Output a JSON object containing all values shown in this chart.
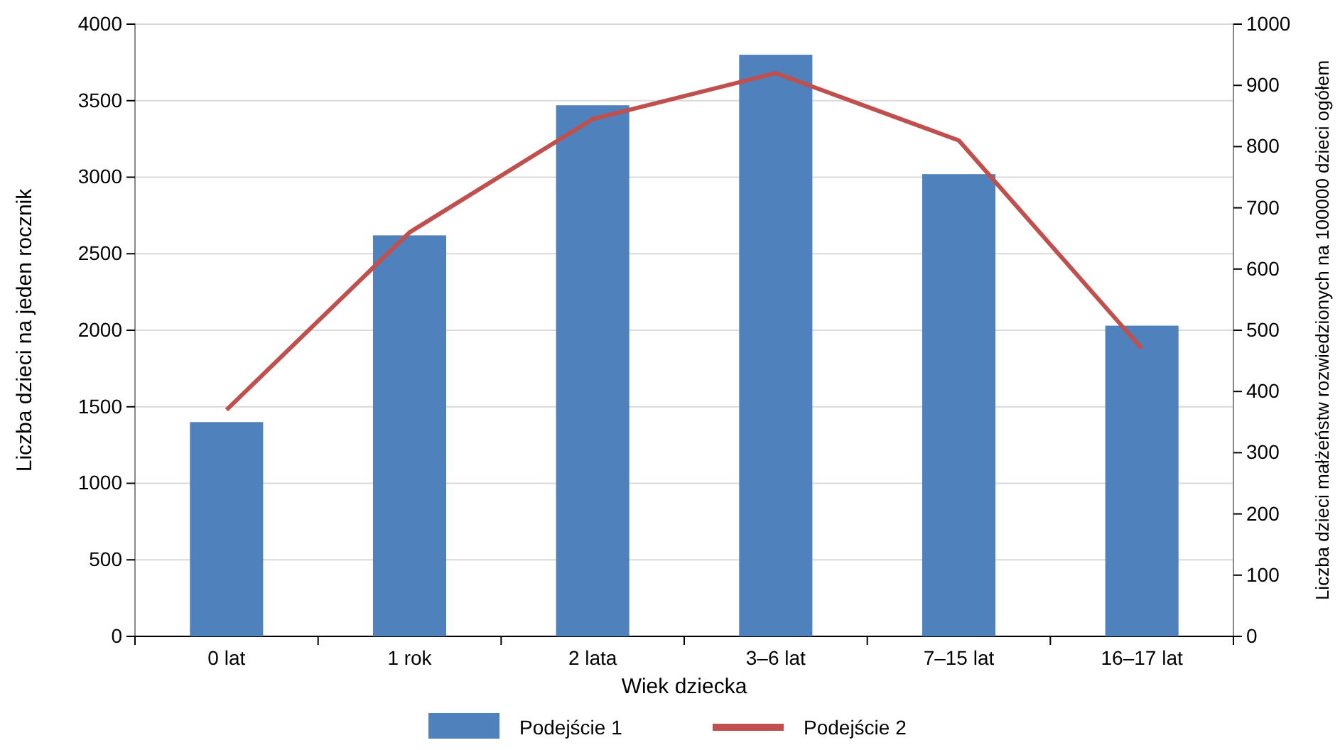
{
  "chart_data": {
    "type": "bar",
    "xlabel": "Wiek dziecka",
    "ylabel": "Liczba dzieci na jeden rocznik",
    "y2label": "Liczba dzieci małżeństw rozwiedzionych na 100000 dzieci ogółem",
    "categories": [
      "0 lat",
      "1 rok",
      "2 lata",
      "3–6 lat",
      "7–15 lat",
      "16–17 lat"
    ],
    "series": [
      {
        "name": "Podejście 1",
        "color": "#4f81bd",
        "values": [
          1400,
          2620,
          3470,
          3800,
          3020,
          2030
        ]
      },
      {
        "name": "Podejście 2",
        "type": "line",
        "axis": "y2",
        "color": "#c0504d",
        "values": [
          370,
          660,
          845,
          920,
          810,
          470
        ]
      }
    ],
    "ylim": [
      0,
      4000
    ],
    "yticks": [
      0,
      500,
      1000,
      1500,
      2000,
      2500,
      3000,
      3500,
      4000
    ],
    "y2lim": [
      0,
      1000
    ],
    "y2ticks": [
      0,
      100,
      200,
      300,
      400,
      500,
      600,
      700,
      800,
      900,
      1000
    ],
    "grid": "y",
    "legend": "bottom",
    "marker": "none",
    "line_style": "solid"
  }
}
